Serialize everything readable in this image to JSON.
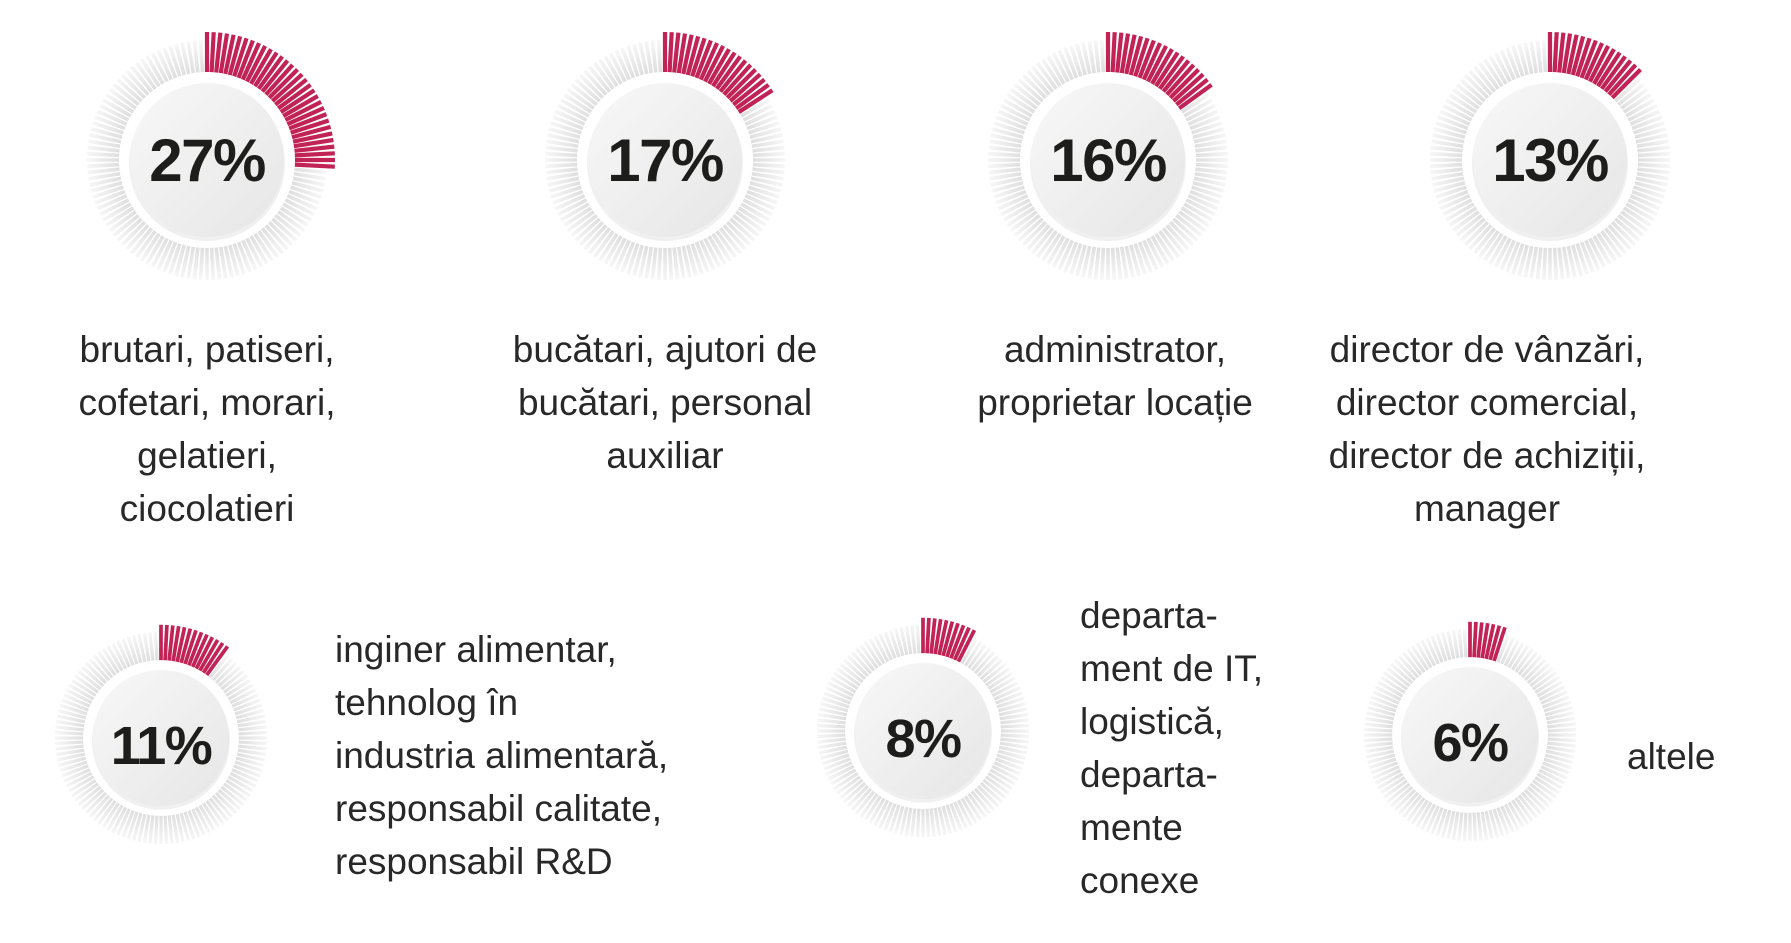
{
  "accent": "#c22356",
  "number_color": "#1d1d1b",
  "caption_color": "#282828",
  "tick_gray_inner": "#d9d9d9",
  "tick_gray_outer": "#fbfbfb",
  "gauges": [
    {
      "value": 27,
      "display": "27%",
      "caption": "brutari, patiseri,\ncofetari, morari,\ngelatieri,\nciocolatieri"
    },
    {
      "value": 17,
      "display": "17%",
      "caption": "bucătari, ajutori de\nbucătari, personal\nauxiliar"
    },
    {
      "value": 16,
      "display": "16%",
      "caption": "administrator,\nproprietar locație"
    },
    {
      "value": 13,
      "display": "13%",
      "caption": "director de vânzări,\ndirector comercial,\ndirector de achiziții,\nmanager"
    },
    {
      "value": 11,
      "display": "11%",
      "caption": "inginer alimentar,\ntehnolog în\nindustria alimentară,\nresponsabil calitate,\nresponsabil R&D"
    },
    {
      "value": 8,
      "display": "8%",
      "caption": "departa-\nment de IT,\nlogistică,\ndeparta-\nmente\nconexe"
    },
    {
      "value": 6,
      "display": "6%",
      "caption": "altele"
    }
  ],
  "chart_data": {
    "type": "pie",
    "title": "",
    "unit": "%",
    "legend_position": "beside-each-gauge",
    "note": "seven radial tick-ring gauges, crimson arc starts at 12 o'clock clockwise",
    "slices": [
      {
        "label": "brutari, patiseri, cofetari, morari, gelatieri, ciocolatieri",
        "value": 27
      },
      {
        "label": "bucătari, ajutori de bucătari, personal auxiliar",
        "value": 17
      },
      {
        "label": "administrator, proprietar locație",
        "value": 16
      },
      {
        "label": "director de vânzări, director comercial, director de achiziții, manager",
        "value": 13
      },
      {
        "label": "inginer alimentar, tehnolog în industria alimentară, responsabil calitate, responsabil R&D",
        "value": 11
      },
      {
        "label": "departament de IT, logistică, departamente conexe",
        "value": 8
      },
      {
        "label": "altele",
        "value": 6
      }
    ]
  }
}
